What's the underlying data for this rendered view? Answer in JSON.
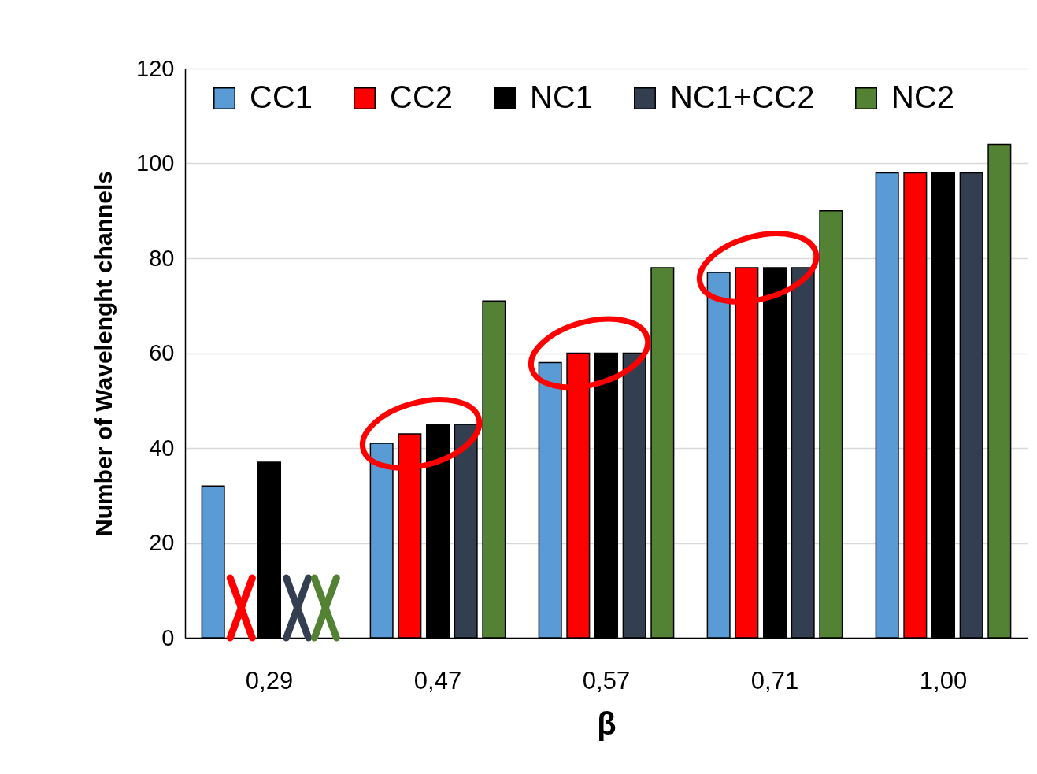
{
  "chart_data": {
    "type": "bar",
    "xlabel": "β",
    "ylabel": "Number of Wavelenght channels",
    "categories": [
      "0,29",
      "0,47",
      "0,57",
      "0,71",
      "1,00"
    ],
    "series": [
      {
        "name": "CC1",
        "color": "#5b9bd5",
        "values": [
          32,
          41,
          58,
          77,
          98
        ]
      },
      {
        "name": "CC2",
        "color": "#ff0000",
        "values": [
          null,
          43,
          60,
          78,
          98
        ]
      },
      {
        "name": "NC1",
        "color": "#000000",
        "values": [
          37,
          45,
          60,
          78,
          98
        ]
      },
      {
        "name": "NC1+CC2",
        "color": "#333f50",
        "values": [
          null,
          45,
          60,
          78,
          98
        ]
      },
      {
        "name": "NC2",
        "color": "#548235",
        "values": [
          null,
          71,
          78,
          90,
          104
        ]
      }
    ],
    "ylim": [
      0,
      120
    ],
    "yticks": [
      0,
      20,
      40,
      60,
      80,
      100,
      120
    ],
    "grid": "y",
    "legend": "top"
  }
}
